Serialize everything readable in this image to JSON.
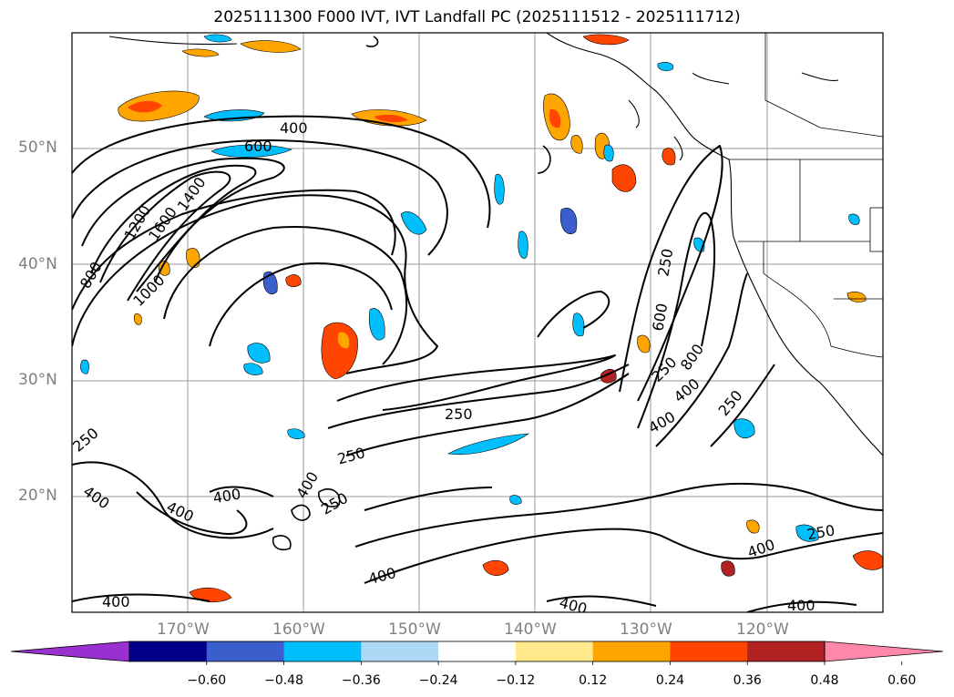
{
  "title": "2025111300 F000 IVT, IVT Landfall PC (2025111512 - 2025111712)",
  "map": {
    "lon_range": [
      -180,
      -110
    ],
    "lat_range": [
      10,
      60
    ],
    "projection": "equirectangular",
    "gridlines": true,
    "lat_labels": [
      "50°N",
      "40°N",
      "30°N",
      "20°N"
    ],
    "lon_labels": [
      "170°W",
      "160°W",
      "150°W",
      "140°W",
      "130°W",
      "120°W"
    ],
    "ivt_contour_labels": [
      "400",
      "600",
      "1200",
      "1400",
      "1600",
      "800",
      "1000",
      "250",
      "250",
      "250",
      "400",
      "400",
      "400",
      "400",
      "250",
      "400",
      "400",
      "400",
      "250",
      "400",
      "250",
      "600",
      "800",
      "400",
      "250",
      "400",
      "250",
      "400"
    ],
    "ivt_contour_levels": [
      250,
      400,
      600,
      800,
      1000,
      1200,
      1400,
      1600
    ]
  },
  "colorbar": {
    "extend": "both",
    "ticks": [
      "−0.60",
      "−0.48",
      "−0.36",
      "−0.24",
      "−0.12",
      "0.12",
      "0.24",
      "0.36",
      "0.48",
      "0.60"
    ],
    "bins": [
      {
        "color": "#9b30d0"
      },
      {
        "color": "#00008b"
      },
      {
        "color": "#3a5fcd"
      },
      {
        "color": "#00bfff"
      },
      {
        "color": "#add8f6"
      },
      {
        "color": "#ffffff"
      },
      {
        "color": "#ffe98a"
      },
      {
        "color": "#ffa500"
      },
      {
        "color": "#ff4500"
      },
      {
        "color": "#b22222"
      },
      {
        "color": "#ff88aa"
      }
    ]
  }
}
